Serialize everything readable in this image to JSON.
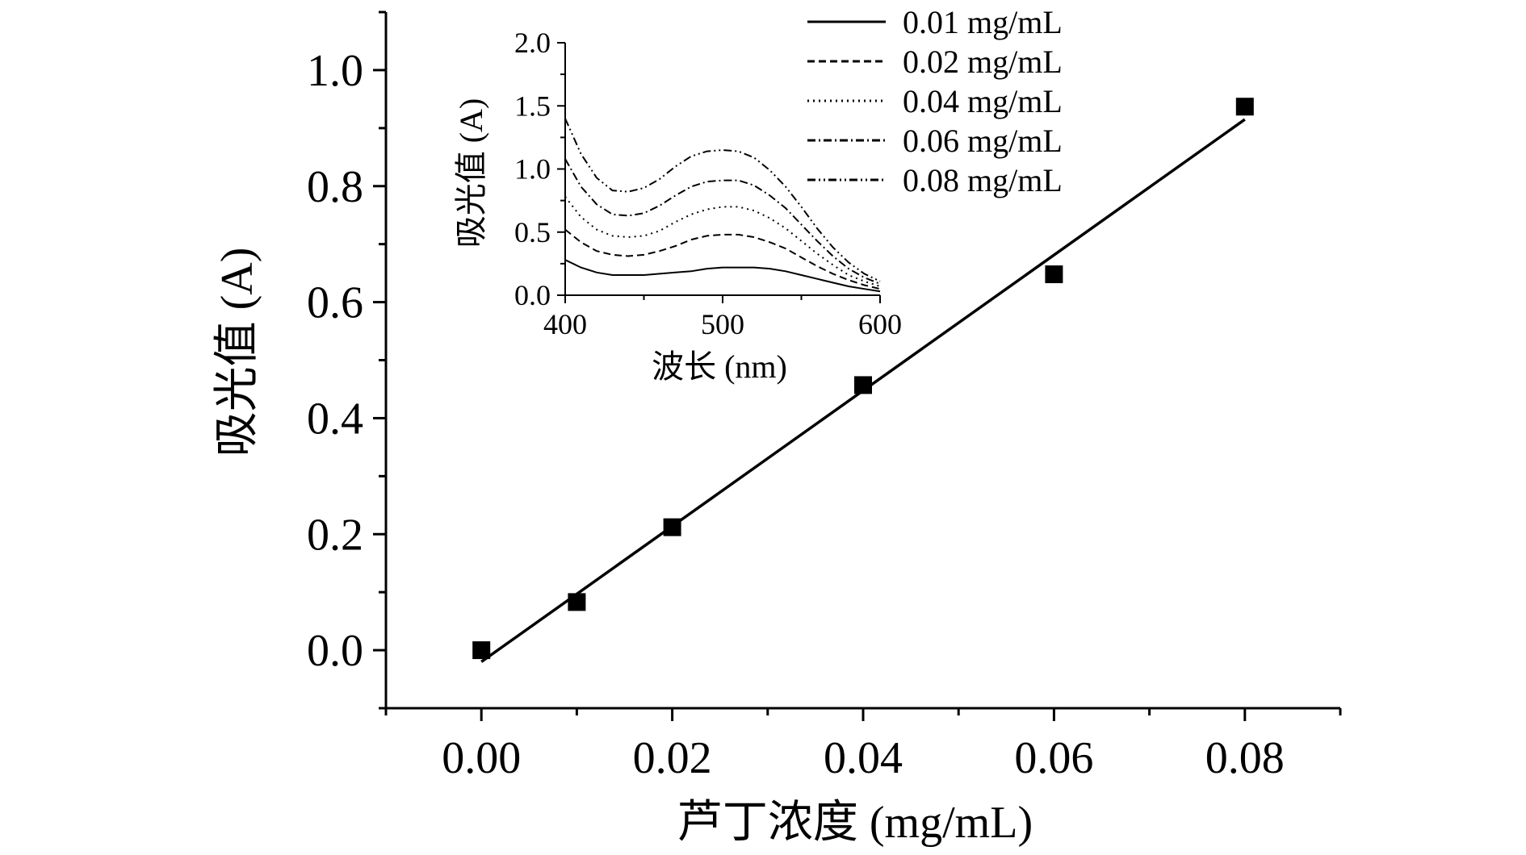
{
  "chart_data": [
    {
      "type": "scatter",
      "xlabel": "芦丁浓度 (mg/mL)",
      "ylabel": "吸光值 (A)",
      "xlim": [
        -0.01,
        0.09
      ],
      "ylim": [
        -0.1,
        1.1
      ],
      "x_ticks": [
        "0.00",
        "0.02",
        "0.04",
        "0.06",
        "0.08"
      ],
      "y_ticks": [
        "0.0",
        "0.2",
        "0.4",
        "0.6",
        "0.8",
        "1.0"
      ],
      "series": [
        {
          "marker": "square",
          "color": "#000000",
          "x": [
            0.0,
            0.01,
            0.02,
            0.04,
            0.06,
            0.08
          ],
          "y": [
            0.0,
            0.083,
            0.212,
            0.457,
            0.648,
            0.937
          ]
        }
      ],
      "fit_line": {
        "x": [
          0.0,
          0.08
        ],
        "y": [
          -0.02,
          0.915
        ],
        "color": "#000000"
      }
    },
    {
      "type": "line",
      "xlabel": "波长 (nm)",
      "ylabel": "吸光值 (A)",
      "xlim": [
        400,
        600
      ],
      "ylim": [
        0.0,
        2.0
      ],
      "x_ticks": [
        "400",
        "500",
        "600"
      ],
      "y_ticks": [
        "0.0",
        "0.5",
        "1.0",
        "1.5",
        "2.0"
      ],
      "x": [
        400,
        410,
        420,
        430,
        440,
        450,
        460,
        470,
        480,
        490,
        500,
        510,
        520,
        530,
        540,
        550,
        560,
        570,
        580,
        590,
        600
      ],
      "series": [
        {
          "name": "0.01 mg/mL",
          "dash": "solid",
          "values": [
            0.28,
            0.22,
            0.18,
            0.16,
            0.16,
            0.16,
            0.17,
            0.18,
            0.19,
            0.21,
            0.22,
            0.22,
            0.22,
            0.21,
            0.19,
            0.16,
            0.13,
            0.1,
            0.07,
            0.05,
            0.03
          ]
        },
        {
          "name": "0.02 mg/mL",
          "dash": "dashed",
          "values": [
            0.52,
            0.42,
            0.35,
            0.32,
            0.31,
            0.32,
            0.35,
            0.39,
            0.44,
            0.47,
            0.48,
            0.48,
            0.46,
            0.42,
            0.37,
            0.3,
            0.23,
            0.17,
            0.12,
            0.08,
            0.05
          ]
        },
        {
          "name": "0.04 mg/mL",
          "dash": "dotted",
          "values": [
            0.78,
            0.62,
            0.52,
            0.47,
            0.46,
            0.47,
            0.51,
            0.58,
            0.64,
            0.68,
            0.7,
            0.7,
            0.67,
            0.61,
            0.53,
            0.43,
            0.33,
            0.24,
            0.16,
            0.11,
            0.07
          ]
        },
        {
          "name": "0.06 mg/mL",
          "dash": "dashdot",
          "values": [
            1.08,
            0.86,
            0.72,
            0.64,
            0.63,
            0.65,
            0.71,
            0.79,
            0.86,
            0.9,
            0.91,
            0.91,
            0.87,
            0.79,
            0.69,
            0.56,
            0.43,
            0.31,
            0.21,
            0.14,
            0.09
          ]
        },
        {
          "name": "0.08 mg/mL",
          "dash": "dashdotdot",
          "values": [
            1.4,
            1.12,
            0.93,
            0.83,
            0.82,
            0.85,
            0.92,
            1.02,
            1.1,
            1.14,
            1.15,
            1.14,
            1.09,
            0.99,
            0.86,
            0.7,
            0.53,
            0.38,
            0.26,
            0.17,
            0.11
          ]
        }
      ]
    }
  ]
}
